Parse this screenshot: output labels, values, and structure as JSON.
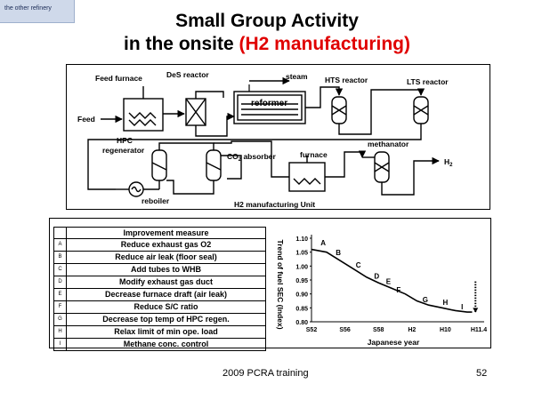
{
  "tag": "the other refinery",
  "title": {
    "line1": "Small Group Activity",
    "line2_prefix": "in the onsite ",
    "line2_highlight": "(H2 manufacturing)"
  },
  "process": {
    "feed_furnace": "Feed furnace",
    "des_reactor": "DeS reactor",
    "steam": "steam",
    "hts_reactor": "HTS reactor",
    "lts_reactor": "LTS reactor",
    "reformer": "reformer",
    "feed": "Feed",
    "hpc_regenerator_1": "HPC",
    "hpc_regenerator_2": "regenerator",
    "co2_absorber_pre": "CO",
    "co2_absorber_sub": "2",
    "co2_absorber_post": " absorber",
    "furnace": "furnace",
    "methanator": "methanator",
    "h2_pre": "H",
    "h2_sub": "2",
    "reboiler": "reboiler",
    "unit": "H2 manufacturing Unit"
  },
  "measures": {
    "header": "Improvement measure",
    "items": [
      {
        "key": "A",
        "label": "Reduce exhaust gas O2"
      },
      {
        "key": "B",
        "label": "Reduce air leak (floor seal)"
      },
      {
        "key": "C",
        "label": "Add tubes to WHB"
      },
      {
        "key": "D",
        "label": "Modify exhaust gas duct"
      },
      {
        "key": "E",
        "label": "Decrease furnace draft (air leak)"
      },
      {
        "key": "F",
        "label": "Reduce S/C ratio"
      },
      {
        "key": "G",
        "label": "Decrease top temp of HPC regen."
      },
      {
        "key": "H",
        "label": "Relax limit of min ope. load"
      },
      {
        "key": "I",
        "label": "Methane conc. control"
      }
    ]
  },
  "chart_data": {
    "type": "line",
    "ylabel": "Trend of fuel SEC (Index)",
    "xlabel": "Japanese year",
    "x_ticks": [
      "S52",
      "S56",
      "S58",
      "H2",
      "H10",
      "H11.4"
    ],
    "y_ticks": [
      "0.80",
      "0.85",
      "0.90",
      "0.95",
      "1.00",
      "1.05",
      "1.10"
    ],
    "ylim": [
      0.8,
      1.1
    ],
    "xlim": [
      0,
      10
    ],
    "x": [
      0.0,
      0.9,
      1.7,
      2.5,
      3.3,
      4.0,
      4.8,
      5.6,
      6.3,
      7.0,
      7.8,
      8.6,
      9.3,
      9.6
    ],
    "y": [
      1.06,
      1.05,
      1.02,
      0.99,
      0.96,
      0.94,
      0.92,
      0.9,
      0.875,
      0.86,
      0.85,
      0.84,
      0.835,
      0.835
    ],
    "point_labels": [
      {
        "label": "A",
        "x": 0.7,
        "y": 1.075
      },
      {
        "label": "B",
        "x": 1.6,
        "y": 1.04
      },
      {
        "label": "C",
        "x": 2.8,
        "y": 0.995
      },
      {
        "label": "D",
        "x": 3.9,
        "y": 0.955
      },
      {
        "label": "E",
        "x": 4.6,
        "y": 0.935
      },
      {
        "label": "F",
        "x": 5.2,
        "y": 0.905
      },
      {
        "label": "G",
        "x": 6.8,
        "y": 0.87
      },
      {
        "label": "H",
        "x": 8.0,
        "y": 0.86
      },
      {
        "label": "I",
        "x": 9.0,
        "y": 0.845
      }
    ],
    "target_x": 9.8
  },
  "footer": {
    "center": "2009 PCRA training",
    "page": "52"
  }
}
